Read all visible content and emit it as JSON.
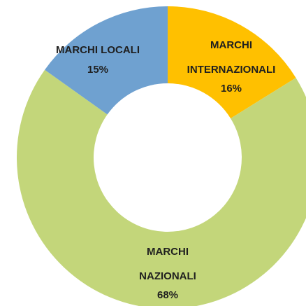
{
  "chart_data": {
    "type": "donut",
    "categories": [
      "MARCHI INTERNAZIONALI",
      "MARCHI NAZIONALI",
      "MARCHI LOCALI"
    ],
    "values": [
      16,
      68,
      15
    ],
    "value_labels": [
      "16%",
      "68%",
      "15%"
    ],
    "colors": [
      "#ffc000",
      "#c3d67a",
      "#6fa1d0"
    ]
  }
}
